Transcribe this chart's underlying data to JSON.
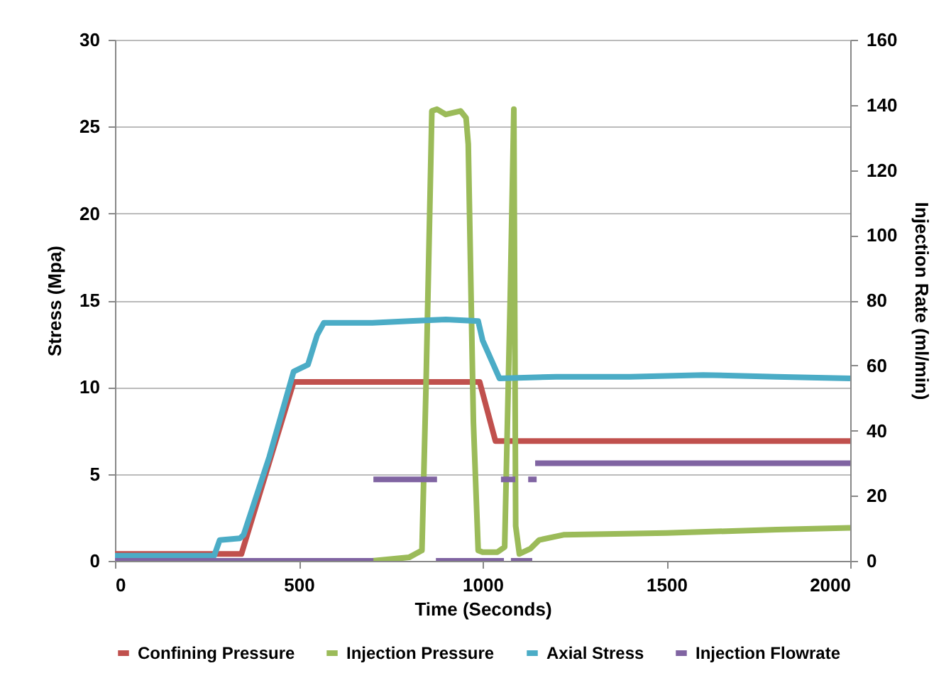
{
  "chart_data": {
    "type": "line",
    "xlabel": "Time (Seconds)",
    "ylabel": "Stress (Mpa)",
    "y2label": "Injection Rate (ml/min)",
    "xlim": [
      0,
      2000
    ],
    "xticks": [
      0,
      500,
      1000,
      1500,
      2000
    ],
    "ylim": [
      0,
      30
    ],
    "yticks": [
      0,
      5,
      10,
      15,
      20,
      25,
      30
    ],
    "y2lim": [
      0,
      160
    ],
    "y2ticks": [
      0,
      20,
      40,
      60,
      80,
      100,
      120,
      140,
      160
    ],
    "grid": "y",
    "legend": "bottom",
    "line_style": "solid",
    "series": [
      {
        "name": "Confining Pressure",
        "color": "#c0504d",
        "x": [
          0,
          344,
          486,
          992,
          1035,
          1060,
          2000
        ],
        "values": [
          0.4,
          0.4,
          10.3,
          10.3,
          6.9,
          6.9,
          6.9
        ]
      },
      {
        "name": "Injection Pressure",
        "color": "#9bbb59",
        "x": [
          0,
          700,
          800,
          835,
          846,
          862,
          876,
          900,
          940,
          955,
          961,
          975,
          988,
          1000,
          1040,
          1060,
          1075,
          1085,
          1090,
          1100,
          1130,
          1154,
          1220,
          1500,
          1800,
          2000
        ],
        "values": [
          0,
          0,
          0.2,
          0.6,
          10,
          25.9,
          26,
          25.7,
          25.9,
          25.5,
          24,
          8,
          0.6,
          0.5,
          0.5,
          0.8,
          15,
          26,
          2,
          0.4,
          0.7,
          1.2,
          1.5,
          1.6,
          1.8,
          1.9
        ]
      },
      {
        "name": "Axial Stress",
        "color": "#4bacc6",
        "x": [
          0,
          270,
          285,
          340,
          350,
          420,
          486,
          525,
          550,
          568,
          700,
          800,
          900,
          988,
          1000,
          1046,
          1200,
          1400,
          1600,
          1800,
          2000
        ],
        "values": [
          0.3,
          0.3,
          1.2,
          1.3,
          1.5,
          6,
          10.9,
          11.3,
          13,
          13.7,
          13.7,
          13.8,
          13.9,
          13.8,
          12.7,
          10.5,
          10.6,
          10.6,
          10.7,
          10.6,
          10.5
        ]
      },
      {
        "name": "Injection Flowrate",
        "color": "#8064a2",
        "axis": "y2",
        "x": [
          0,
          703,
          703,
          876,
          873,
          1058,
          1050,
          1089,
          1077,
          1135,
          1124,
          1147,
          1143,
          2000
        ],
        "values": [
          0,
          0,
          25,
          25,
          0,
          0,
          25,
          25,
          0,
          0,
          25,
          25,
          30,
          30
        ]
      }
    ]
  }
}
